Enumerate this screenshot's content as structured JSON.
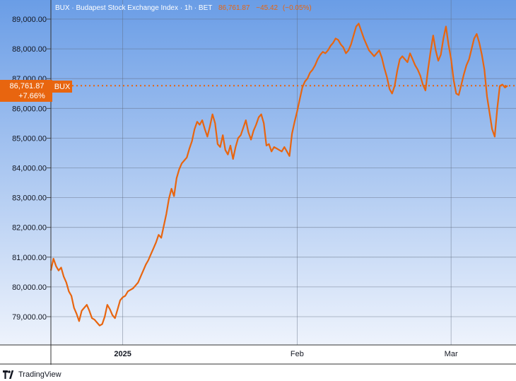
{
  "header": {
    "symbol": "BUX",
    "name": "Budapest Stock Exchange Index",
    "interval": "1h",
    "exchange": "BET",
    "last": "86,761.87",
    "change": "−45.42",
    "change_pct": "(−0.05%)"
  },
  "price_badge": {
    "value": "86,761.87",
    "change_pct": "+7.66%",
    "symbol": "BUX"
  },
  "footer": {
    "brand": "TradingView",
    "logo_icon": "tradingview-logo-icon"
  },
  "colors": {
    "plot_bg_top": "#6a9de6",
    "plot_bg_bottom": "#eef3fc",
    "line": "#e8650f",
    "grid": "#5f6b80",
    "text": "#131722",
    "header_muted": "#f3f3f3"
  },
  "chart_data": {
    "type": "line",
    "title": "BUX · Budapest Stock Exchange Index · 1h · BET",
    "xlabel": "",
    "ylabel": "",
    "ylim": [
      78000,
      89400
    ],
    "y_ticks": [
      89000,
      88000,
      87000,
      86000,
      85000,
      84000,
      83000,
      82000,
      81000,
      80000,
      79000
    ],
    "y_tick_labels": [
      "89,000.00",
      "88,000.00",
      "87,000.00",
      "86,000.00",
      "85,000.00",
      "84,000.00",
      "83,000.00",
      "82,000.00",
      "81,000.00",
      "80,000.00",
      "79,000.00"
    ],
    "x_ticks": [
      {
        "label": "",
        "x": 0
      },
      {
        "label": "2025",
        "x": 14
      },
      {
        "label": "Feb",
        "x": 48
      },
      {
        "label": "Mar",
        "x": 78
      }
    ],
    "grid": true,
    "x_range": [
      0,
      90
    ],
    "last_value": 86761.87,
    "series": [
      {
        "name": "BUX",
        "points": [
          [
            0,
            80550
          ],
          [
            0.5,
            80950
          ],
          [
            1,
            80700
          ],
          [
            1.5,
            80550
          ],
          [
            2,
            80650
          ],
          [
            2.5,
            80350
          ],
          [
            3,
            80150
          ],
          [
            3.5,
            79850
          ],
          [
            4,
            79700
          ],
          [
            4.5,
            79300
          ],
          [
            5,
            79100
          ],
          [
            5.5,
            78850
          ],
          [
            6,
            79200
          ],
          [
            6.5,
            79300
          ],
          [
            7,
            79400
          ],
          [
            7.5,
            79200
          ],
          [
            8,
            78950
          ],
          [
            8.5,
            78900
          ],
          [
            9,
            78800
          ],
          [
            9.5,
            78700
          ],
          [
            10,
            78750
          ],
          [
            10.5,
            79000
          ],
          [
            11,
            79400
          ],
          [
            11.5,
            79250
          ],
          [
            12,
            79050
          ],
          [
            12.5,
            78950
          ],
          [
            13,
            79250
          ],
          [
            13.5,
            79550
          ],
          [
            14,
            79650
          ],
          [
            14.5,
            79700
          ],
          [
            15,
            79850
          ],
          [
            15.5,
            79900
          ],
          [
            16,
            79950
          ],
          [
            16.5,
            80050
          ],
          [
            17,
            80150
          ],
          [
            17.5,
            80350
          ],
          [
            18,
            80550
          ],
          [
            18.5,
            80750
          ],
          [
            19,
            80900
          ],
          [
            19.5,
            81100
          ],
          [
            20,
            81300
          ],
          [
            20.5,
            81500
          ],
          [
            21,
            81750
          ],
          [
            21.5,
            81650
          ],
          [
            22,
            82050
          ],
          [
            22.5,
            82450
          ],
          [
            23,
            82950
          ],
          [
            23.5,
            83300
          ],
          [
            24,
            83050
          ],
          [
            24.5,
            83650
          ],
          [
            25,
            83950
          ],
          [
            25.5,
            84150
          ],
          [
            26,
            84250
          ],
          [
            26.5,
            84350
          ],
          [
            27,
            84650
          ],
          [
            27.5,
            84900
          ],
          [
            28,
            85300
          ],
          [
            28.5,
            85550
          ],
          [
            29,
            85450
          ],
          [
            29.5,
            85600
          ],
          [
            30,
            85300
          ],
          [
            30.5,
            85050
          ],
          [
            31,
            85400
          ],
          [
            31.5,
            85800
          ],
          [
            32,
            85500
          ],
          [
            32.5,
            84800
          ],
          [
            33,
            84700
          ],
          [
            33.5,
            85100
          ],
          [
            34,
            84600
          ],
          [
            34.5,
            84450
          ],
          [
            35,
            84750
          ],
          [
            35.5,
            84300
          ],
          [
            36,
            84700
          ],
          [
            36.5,
            85000
          ],
          [
            37,
            85100
          ],
          [
            37.5,
            85350
          ],
          [
            38,
            85600
          ],
          [
            38.5,
            85200
          ],
          [
            39,
            84950
          ],
          [
            39.5,
            85250
          ],
          [
            40,
            85450
          ],
          [
            40.5,
            85700
          ],
          [
            41,
            85800
          ],
          [
            41.5,
            85500
          ],
          [
            42,
            84750
          ],
          [
            42.5,
            84800
          ],
          [
            43,
            84550
          ],
          [
            43.5,
            84700
          ],
          [
            44,
            84650
          ],
          [
            44.5,
            84600
          ],
          [
            45,
            84550
          ],
          [
            45.5,
            84700
          ],
          [
            46,
            84550
          ],
          [
            46.5,
            84400
          ],
          [
            47,
            85150
          ],
          [
            47.5,
            85550
          ],
          [
            48,
            85900
          ],
          [
            48.5,
            86300
          ],
          [
            49,
            86700
          ],
          [
            49.5,
            86900
          ],
          [
            50,
            87000
          ],
          [
            50.5,
            87200
          ],
          [
            51,
            87300
          ],
          [
            51.5,
            87450
          ],
          [
            52,
            87650
          ],
          [
            52.5,
            87800
          ],
          [
            53,
            87900
          ],
          [
            53.5,
            87850
          ],
          [
            54,
            87950
          ],
          [
            54.5,
            88100
          ],
          [
            55,
            88200
          ],
          [
            55.5,
            88350
          ],
          [
            56,
            88300
          ],
          [
            56.5,
            88150
          ],
          [
            57,
            88050
          ],
          [
            57.5,
            87850
          ],
          [
            58,
            87950
          ],
          [
            58.5,
            88150
          ],
          [
            59,
            88450
          ],
          [
            59.5,
            88750
          ],
          [
            60,
            88850
          ],
          [
            60.5,
            88600
          ],
          [
            61,
            88350
          ],
          [
            61.5,
            88150
          ],
          [
            62,
            87950
          ],
          [
            62.5,
            87850
          ],
          [
            63,
            87750
          ],
          [
            63.5,
            87850
          ],
          [
            64,
            87950
          ],
          [
            64.5,
            87700
          ],
          [
            65,
            87350
          ],
          [
            65.5,
            87050
          ],
          [
            66,
            86650
          ],
          [
            66.5,
            86500
          ],
          [
            67,
            86750
          ],
          [
            67.5,
            87250
          ],
          [
            68,
            87650
          ],
          [
            68.5,
            87750
          ],
          [
            69,
            87650
          ],
          [
            69.5,
            87550
          ],
          [
            70,
            87850
          ],
          [
            70.5,
            87650
          ],
          [
            71,
            87450
          ],
          [
            71.5,
            87300
          ],
          [
            72,
            87100
          ],
          [
            72.5,
            86800
          ],
          [
            73,
            86600
          ],
          [
            73.5,
            87300
          ],
          [
            74,
            87900
          ],
          [
            74.5,
            88450
          ],
          [
            75,
            87950
          ],
          [
            75.5,
            87600
          ],
          [
            76,
            87800
          ],
          [
            76.5,
            88350
          ],
          [
            77,
            88750
          ],
          [
            77.5,
            88150
          ],
          [
            78,
            87650
          ],
          [
            78.5,
            86950
          ],
          [
            79,
            86500
          ],
          [
            79.5,
            86450
          ],
          [
            80,
            86800
          ],
          [
            80.5,
            87150
          ],
          [
            81,
            87450
          ],
          [
            81.5,
            87650
          ],
          [
            82,
            88000
          ],
          [
            82.5,
            88350
          ],
          [
            83,
            88500
          ],
          [
            83.5,
            88200
          ],
          [
            84,
            87800
          ],
          [
            84.5,
            87300
          ],
          [
            85,
            86400
          ],
          [
            85.5,
            85850
          ],
          [
            86,
            85300
          ],
          [
            86.5,
            85050
          ],
          [
            87,
            86000
          ],
          [
            87.5,
            86750
          ],
          [
            88,
            86800
          ],
          [
            88.5,
            86700
          ],
          [
            89,
            86761.87
          ]
        ]
      }
    ]
  }
}
